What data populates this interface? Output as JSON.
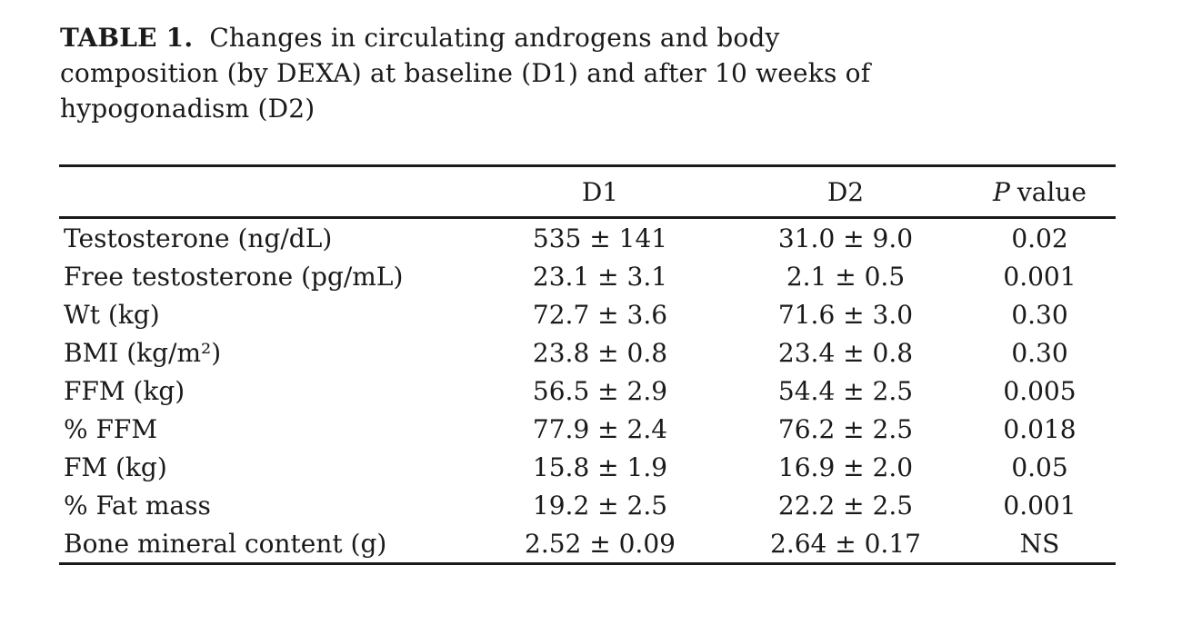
{
  "caption": {
    "label": "TABLE 1.",
    "lines": [
      "Changes in circulating androgens and body",
      "composition (by DEXA) at baseline (D1) and after 10 weeks of",
      "hypogonadism (D2)"
    ]
  },
  "table": {
    "columns": {
      "metric": "",
      "d1": "D1",
      "d2": "D2",
      "p_symbol": "P",
      "p_rest": "value"
    },
    "rows": [
      {
        "label": "Testosterone (ng/dL)",
        "d1": "535 ± 141",
        "d2": "31.0 ± 9.0",
        "p": "0.02"
      },
      {
        "label": "Free testosterone (pg/mL)",
        "d1": "23.1 ± 3.1",
        "d2": "2.1 ± 0.5",
        "p": "0.001"
      },
      {
        "label": "Wt (kg)",
        "d1": "72.7 ± 3.6",
        "d2": "71.6 ± 3.0",
        "p": "0.30"
      },
      {
        "label": "BMI (kg/m²)",
        "d1": "23.8 ± 0.8",
        "d2": "23.4 ± 0.8",
        "p": "0.30"
      },
      {
        "label": "FFM (kg)",
        "d1": "56.5 ± 2.9",
        "d2": "54.4 ± 2.5",
        "p": "0.005"
      },
      {
        "label": "% FFM",
        "d1": "77.9 ± 2.4",
        "d2": "76.2 ± 2.5",
        "p": "0.018"
      },
      {
        "label": "FM (kg)",
        "d1": "15.8 ± 1.9",
        "d2": "16.9 ± 2.0",
        "p": "0.05"
      },
      {
        "label": "% Fat mass",
        "d1": "19.2 ± 2.5",
        "d2": "22.2 ± 2.5",
        "p": "0.001"
      },
      {
        "label": "Bone mineral content (g)",
        "d1": "2.52 ± 0.09",
        "d2": "2.64 ± 0.17",
        "p": "NS"
      }
    ]
  }
}
